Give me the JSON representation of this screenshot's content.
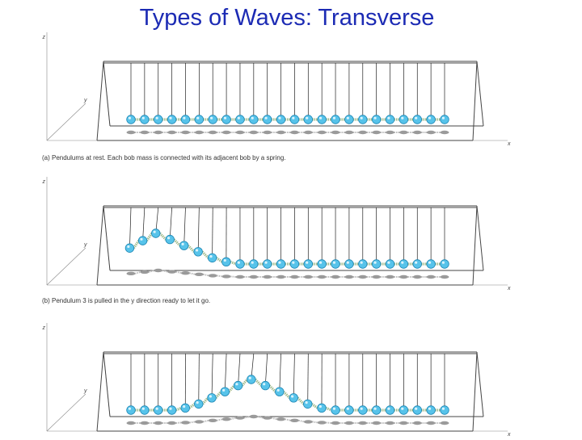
{
  "title": "Types of Waves: Transverse",
  "axis_labels": {
    "z": "z",
    "y": "y",
    "x": "x"
  },
  "colors": {
    "title": "#1c2bb4",
    "bob_fill": "#57c3ea",
    "bob_stroke": "#1d87b5",
    "spring": "#9fb98a",
    "shadow": "#9a9a9a",
    "frame": "#444444"
  },
  "bob_count": 24,
  "panels": [
    {
      "caption": "(a) Pendulums at rest. Each bob mass is connected with its adjacent bob by a spring.",
      "displacement_profile": [
        0,
        0,
        0,
        0,
        0,
        0,
        0,
        0,
        0,
        0,
        0,
        0,
        0,
        0,
        0,
        0,
        0,
        0,
        0,
        0,
        0,
        0,
        0,
        0
      ]
    },
    {
      "caption": "(b) Pendulum 3 is pulled in the y direction ready to let it go.",
      "displacement_profile": [
        0.52,
        0.76,
        1.0,
        0.8,
        0.6,
        0.4,
        0.2,
        0.07,
        0,
        0,
        0,
        0,
        0,
        0,
        0,
        0,
        0,
        0,
        0,
        0,
        0,
        0,
        0,
        0
      ]
    },
    {
      "caption": "",
      "displacement_profile": [
        0,
        0,
        0,
        0,
        0.07,
        0.2,
        0.4,
        0.6,
        0.8,
        1.0,
        0.8,
        0.6,
        0.4,
        0.2,
        0.07,
        0,
        0,
        0,
        0,
        0,
        0,
        0,
        0,
        0
      ]
    }
  ]
}
